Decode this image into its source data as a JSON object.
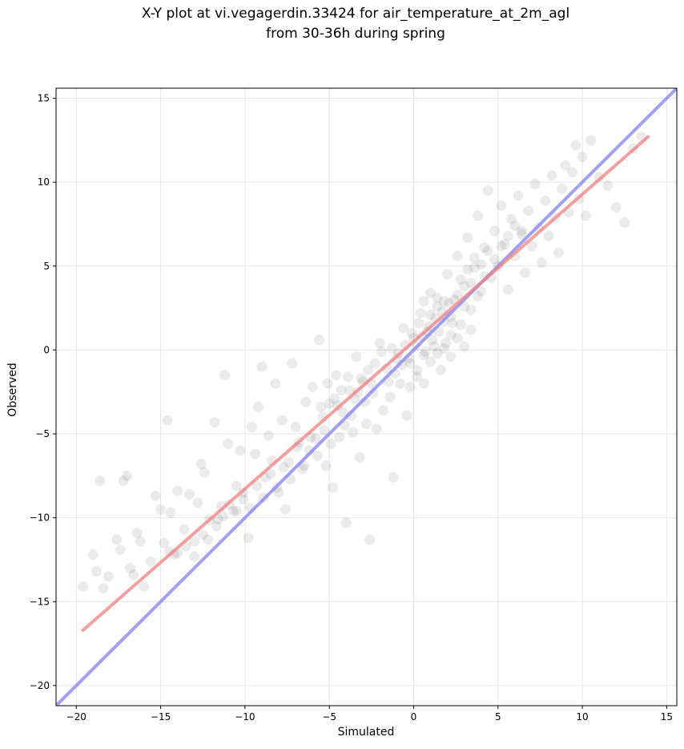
{
  "chart_data": {
    "type": "scatter",
    "title": "X-Y plot at vi.vegagerdin.33424 for air_temperature_at_2m_agl",
    "subtitle": "from 30-36h during spring",
    "xlabel": "Simulated",
    "ylabel": "Observed",
    "xlim": [
      -21.2,
      15.6
    ],
    "ylim": [
      -21.2,
      15.6
    ],
    "xticks": [
      -20,
      -15,
      -10,
      -5,
      0,
      5,
      10,
      15
    ],
    "yticks": [
      -20,
      -15,
      -10,
      -5,
      0,
      5,
      10,
      15
    ],
    "grid": true,
    "point_color": "#000000",
    "point_alpha": 0.08,
    "series": [
      {
        "values": [
          [
            -19.6,
            -14.1
          ],
          [
            -19.0,
            -12.2
          ],
          [
            -18.8,
            -13.2
          ],
          [
            -18.6,
            -7.8
          ],
          [
            -18.4,
            -14.2
          ],
          [
            -18.1,
            -13.5
          ],
          [
            -17.6,
            -11.3
          ],
          [
            -17.4,
            -11.9
          ],
          [
            -17.2,
            -7.8
          ],
          [
            -17.0,
            -7.5
          ],
          [
            -16.8,
            -13.0
          ],
          [
            -16.6,
            -13.4
          ],
          [
            -16.4,
            -10.9
          ],
          [
            -16.2,
            -11.4
          ],
          [
            -16.0,
            -14.1
          ],
          [
            -15.6,
            -12.6
          ],
          [
            -15.3,
            -8.7
          ],
          [
            -15.0,
            -9.5
          ],
          [
            -14.8,
            -11.5
          ],
          [
            -14.6,
            -4.2
          ],
          [
            -14.4,
            -9.7
          ],
          [
            -14.2,
            -12.2
          ],
          [
            -14.0,
            -8.4
          ],
          [
            -13.6,
            -10.7
          ],
          [
            -13.3,
            -8.6
          ],
          [
            -13.0,
            -12.3
          ],
          [
            -12.8,
            -9.1
          ],
          [
            -12.6,
            -6.8
          ],
          [
            -12.4,
            -7.3
          ],
          [
            -12.2,
            -11.3
          ],
          [
            -11.8,
            -4.3
          ],
          [
            -11.6,
            -10.1
          ],
          [
            -11.4,
            -9.3
          ],
          [
            -11.2,
            -1.5
          ],
          [
            -11.0,
            -5.6
          ],
          [
            -10.7,
            -9.6
          ],
          [
            -10.5,
            -8.1
          ],
          [
            -10.3,
            -6.0
          ],
          [
            -10.1,
            -8.5
          ],
          [
            -9.8,
            -11.2
          ],
          [
            -9.6,
            -4.6
          ],
          [
            -9.4,
            -6.2
          ],
          [
            -9.2,
            -3.4
          ],
          [
            -9.0,
            -1.0
          ],
          [
            -8.8,
            -7.6
          ],
          [
            -8.6,
            -5.1
          ],
          [
            -8.4,
            -6.6
          ],
          [
            -8.2,
            -2.0
          ],
          [
            -8.0,
            -8.5
          ],
          [
            -7.8,
            -4.2
          ],
          [
            -7.6,
            -9.5
          ],
          [
            -7.4,
            -6.7
          ],
          [
            -7.2,
            -0.8
          ],
          [
            -7.0,
            -4.6
          ],
          [
            -6.8,
            -5.5
          ],
          [
            -6.6,
            -7.1
          ],
          [
            -6.4,
            -3.1
          ],
          [
            -6.2,
            -6.0
          ],
          [
            -6.0,
            -2.2
          ],
          [
            -5.8,
            -5.3
          ],
          [
            -5.6,
            0.6
          ],
          [
            -5.4,
            -4.0
          ],
          [
            -5.2,
            -6.9
          ],
          [
            -5.0,
            -3.2
          ],
          [
            -4.8,
            -8.2
          ],
          [
            -4.6,
            -1.5
          ],
          [
            -4.4,
            -5.2
          ],
          [
            -4.2,
            -3.7
          ],
          [
            -4.0,
            -10.3
          ],
          [
            -3.8,
            -2.4
          ],
          [
            -3.6,
            -4.9
          ],
          [
            -3.4,
            -0.4
          ],
          [
            -3.2,
            -6.4
          ],
          [
            -3.0,
            -1.9
          ],
          [
            -2.8,
            -4.4
          ],
          [
            -2.6,
            -11.3
          ],
          [
            -2.4,
            -2.6
          ],
          [
            -2.2,
            -4.7
          ],
          [
            -2.0,
            0.4
          ],
          [
            -1.8,
            -3.6
          ],
          [
            -1.6,
            -1.1
          ],
          [
            -1.4,
            -2.8
          ],
          [
            -1.2,
            -7.6
          ],
          [
            -1.0,
            -0.5
          ],
          [
            -0.8,
            -2.0
          ],
          [
            -0.6,
            1.3
          ],
          [
            -0.4,
            -3.9
          ],
          [
            -0.2,
            -0.8
          ],
          [
            0.0,
            0.7
          ],
          [
            0.2,
            -1.6
          ],
          [
            0.4,
            2.2
          ],
          [
            0.6,
            -0.3
          ],
          [
            0.8,
            1.1
          ],
          [
            1.0,
            3.4
          ],
          [
            1.2,
            0.2
          ],
          [
            1.4,
            2.6
          ],
          [
            1.6,
            -1.2
          ],
          [
            1.8,
            1.7
          ],
          [
            2.0,
            4.5
          ],
          [
            2.2,
            0.9
          ],
          [
            2.4,
            3.0
          ],
          [
            2.6,
            5.6
          ],
          [
            2.8,
            1.5
          ],
          [
            3.0,
            3.8
          ],
          [
            3.2,
            6.7
          ],
          [
            3.4,
            2.4
          ],
          [
            3.6,
            4.9
          ],
          [
            3.8,
            8.0
          ],
          [
            4.0,
            3.5
          ],
          [
            4.2,
            6.1
          ],
          [
            4.4,
            9.5
          ],
          [
            4.6,
            4.3
          ],
          [
            4.8,
            7.1
          ],
          [
            5.0,
            5.0
          ],
          [
            5.2,
            8.6
          ],
          [
            5.4,
            6.3
          ],
          [
            5.6,
            3.6
          ],
          [
            5.8,
            7.8
          ],
          [
            6.0,
            5.6
          ],
          [
            6.2,
            9.2
          ],
          [
            6.4,
            6.9
          ],
          [
            6.6,
            4.6
          ],
          [
            6.8,
            8.3
          ],
          [
            7.0,
            6.2
          ],
          [
            7.2,
            9.9
          ],
          [
            7.4,
            7.3
          ],
          [
            7.6,
            5.2
          ],
          [
            7.8,
            8.9
          ],
          [
            8.0,
            6.8
          ],
          [
            8.2,
            10.4
          ],
          [
            8.4,
            7.9
          ],
          [
            8.6,
            5.8
          ],
          [
            8.8,
            9.6
          ],
          [
            9.0,
            11.0
          ],
          [
            9.2,
            8.2
          ],
          [
            9.4,
            10.6
          ],
          [
            9.6,
            12.2
          ],
          [
            9.8,
            9.0
          ],
          [
            10.0,
            11.5
          ],
          [
            10.2,
            8.0
          ],
          [
            10.5,
            12.5
          ],
          [
            11.0,
            10.3
          ],
          [
            11.5,
            9.8
          ],
          [
            12.0,
            8.5
          ],
          [
            12.5,
            7.6
          ],
          [
            13.0,
            12.0
          ],
          [
            13.5,
            12.7
          ],
          [
            0.1,
            0.2
          ],
          [
            0.5,
            0.8
          ],
          [
            0.9,
            1.4
          ],
          [
            1.3,
            1.9
          ],
          [
            1.7,
            2.3
          ],
          [
            2.1,
            2.8
          ],
          [
            -0.3,
            -0.5
          ],
          [
            -0.7,
            -0.9
          ],
          [
            -1.1,
            -1.4
          ],
          [
            -1.5,
            -1.9
          ],
          [
            0.3,
            1.6
          ],
          [
            0.7,
            -0.1
          ],
          [
            1.1,
            0.6
          ],
          [
            1.5,
            1.1
          ],
          [
            1.9,
            0.4
          ],
          [
            2.3,
            1.6
          ],
          [
            -0.1,
            1.0
          ],
          [
            -0.5,
            0.3
          ],
          [
            -0.9,
            -0.2
          ],
          [
            -1.3,
            0.1
          ],
          [
            0.6,
            2.9
          ],
          [
            1.0,
            2.1
          ],
          [
            1.4,
            3.1
          ],
          [
            1.8,
            2.9
          ],
          [
            2.2,
            2.0
          ],
          [
            2.6,
            3.3
          ],
          [
            3.0,
            2.6
          ],
          [
            3.4,
            4.0
          ],
          [
            3.8,
            3.2
          ],
          [
            4.2,
            4.4
          ],
          [
            -2.5,
            -2.0
          ],
          [
            -2.9,
            -3.1
          ],
          [
            -3.3,
            -2.5
          ],
          [
            -3.7,
            -3.9
          ],
          [
            -4.1,
            -4.5
          ],
          [
            -4.5,
            -3.3
          ],
          [
            -4.9,
            -5.6
          ],
          [
            -5.3,
            -4.8
          ],
          [
            -5.7,
            -6.3
          ],
          [
            -6.1,
            -5.2
          ],
          [
            -6.5,
            -6.9
          ],
          [
            -6.9,
            -5.8
          ],
          [
            -7.3,
            -7.7
          ],
          [
            -7.7,
            -7.0
          ],
          [
            -8.1,
            -8.2
          ],
          [
            -8.5,
            -7.4
          ],
          [
            -8.9,
            -8.8
          ],
          [
            -9.3,
            -8.1
          ],
          [
            -9.7,
            -9.4
          ],
          [
            -10.1,
            -8.9
          ],
          [
            -10.5,
            -9.6
          ],
          [
            -10.9,
            -9.2
          ],
          [
            -11.3,
            -9.9
          ],
          [
            -11.7,
            -10.5
          ],
          [
            -12.1,
            -10.1
          ],
          [
            -12.5,
            -11.0
          ],
          [
            -13.0,
            -11.4
          ],
          [
            -13.5,
            -11.7
          ],
          [
            -14.0,
            -12.1
          ],
          [
            -14.5,
            -12.0
          ],
          [
            2.8,
            4.2
          ],
          [
            3.2,
            4.8
          ],
          [
            3.6,
            5.5
          ],
          [
            4.0,
            5.1
          ],
          [
            4.4,
            5.9
          ],
          [
            4.8,
            5.4
          ],
          [
            5.2,
            6.2
          ],
          [
            5.6,
            6.8
          ],
          [
            6.0,
            7.4
          ],
          [
            6.4,
            7.1
          ],
          [
            -0.2,
            -2.2
          ],
          [
            0.2,
            -1.2
          ],
          [
            0.6,
            -2.0
          ],
          [
            1.0,
            -0.7
          ],
          [
            1.4,
            -0.2
          ],
          [
            1.8,
            0.1
          ],
          [
            2.2,
            -0.4
          ],
          [
            2.6,
            0.7
          ],
          [
            3.0,
            0.2
          ],
          [
            3.4,
            1.2
          ],
          [
            -1.9,
            -0.1
          ],
          [
            -2.3,
            -0.8
          ],
          [
            -2.7,
            -1.2
          ],
          [
            -3.1,
            -1.7
          ],
          [
            -3.5,
            -2.9
          ],
          [
            -3.9,
            -1.6
          ],
          [
            -4.3,
            -2.4
          ],
          [
            -4.7,
            -2.9
          ],
          [
            -5.1,
            -2.0
          ],
          [
            -5.5,
            -3.4
          ]
        ]
      }
    ],
    "fit_line": {
      "color": "#f08080",
      "x": [
        -19.6,
        13.9
      ],
      "y": [
        -16.7,
        12.7
      ]
    },
    "identity_line": {
      "color": "#8080f0",
      "x": [
        -21.2,
        15.6
      ],
      "y": [
        -21.2,
        15.6
      ]
    }
  }
}
